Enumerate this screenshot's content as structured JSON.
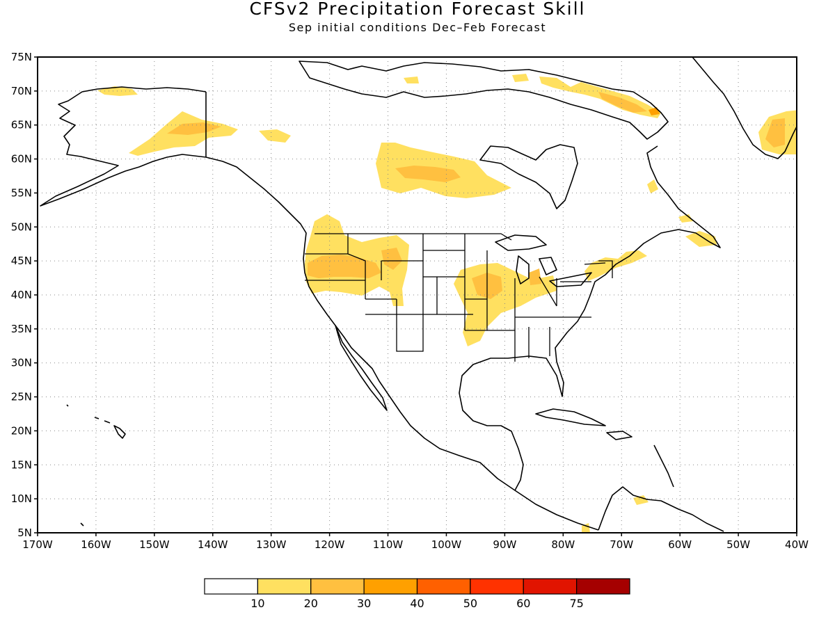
{
  "title": "CFSv2 Precipitation Forecast Skill",
  "subtitle": "Sep initial conditions   Dec–Feb Forecast",
  "map": {
    "lon_range": [
      -170,
      -40
    ],
    "lat_range": [
      5,
      75
    ],
    "lat_ticks": [
      {
        "value": 75,
        "label": "75N"
      },
      {
        "value": 70,
        "label": "70N"
      },
      {
        "value": 65,
        "label": "65N"
      },
      {
        "value": 60,
        "label": "60N"
      },
      {
        "value": 55,
        "label": "55N"
      },
      {
        "value": 50,
        "label": "50N"
      },
      {
        "value": 45,
        "label": "45N"
      },
      {
        "value": 40,
        "label": "40N"
      },
      {
        "value": 35,
        "label": "35N"
      },
      {
        "value": 30,
        "label": "30N"
      },
      {
        "value": 25,
        "label": "25N"
      },
      {
        "value": 20,
        "label": "20N"
      },
      {
        "value": 15,
        "label": "15N"
      },
      {
        "value": 10,
        "label": "10N"
      },
      {
        "value": 5,
        "label": "5N"
      }
    ],
    "lon_ticks": [
      {
        "value": -170,
        "label": "170W"
      },
      {
        "value": -160,
        "label": "160W"
      },
      {
        "value": -150,
        "label": "150W"
      },
      {
        "value": -140,
        "label": "140W"
      },
      {
        "value": -130,
        "label": "130W"
      },
      {
        "value": -120,
        "label": "120W"
      },
      {
        "value": -110,
        "label": "110W"
      },
      {
        "value": -100,
        "label": "100W"
      },
      {
        "value": -90,
        "label": "90W"
      },
      {
        "value": -80,
        "label": "80W"
      },
      {
        "value": -70,
        "label": "70W"
      },
      {
        "value": -60,
        "label": "60W"
      },
      {
        "value": -50,
        "label": "50W"
      },
      {
        "value": -40,
        "label": "40W"
      }
    ],
    "grid": "dotted",
    "skill_regions": [
      {
        "name": "alaska-interior",
        "level": 1
      },
      {
        "name": "alaska-core",
        "level": 2
      },
      {
        "name": "alaska-north-slope",
        "level": 1
      },
      {
        "name": "yukon",
        "level": 1
      },
      {
        "name": "hudson-west",
        "level": 1
      },
      {
        "name": "hudson-west-core",
        "level": 2
      },
      {
        "name": "arctic-islands",
        "level": 1
      },
      {
        "name": "baffin",
        "level": 2
      },
      {
        "name": "baffin-core",
        "level": 3
      },
      {
        "name": "greenland-south",
        "level": 1
      },
      {
        "name": "greenland-core",
        "level": 2
      },
      {
        "name": "pacific-northwest",
        "level": 1
      },
      {
        "name": "oregon-idaho-core",
        "level": 2
      },
      {
        "name": "midwest",
        "level": 1
      },
      {
        "name": "midwest-core",
        "level": 2
      },
      {
        "name": "northeast",
        "level": 1
      },
      {
        "name": "maritimes",
        "level": 1
      },
      {
        "name": "labrador",
        "level": 1
      },
      {
        "name": "caribbean-south",
        "level": 1
      }
    ]
  },
  "colorbar": {
    "colors": [
      "#ffffff",
      "#ffe060",
      "#ffc040",
      "#ffa000",
      "#ff6000",
      "#ff3200",
      "#e11400",
      "#a50000"
    ],
    "labels": [
      "10",
      "20",
      "30",
      "40",
      "50",
      "60",
      "75"
    ]
  }
}
